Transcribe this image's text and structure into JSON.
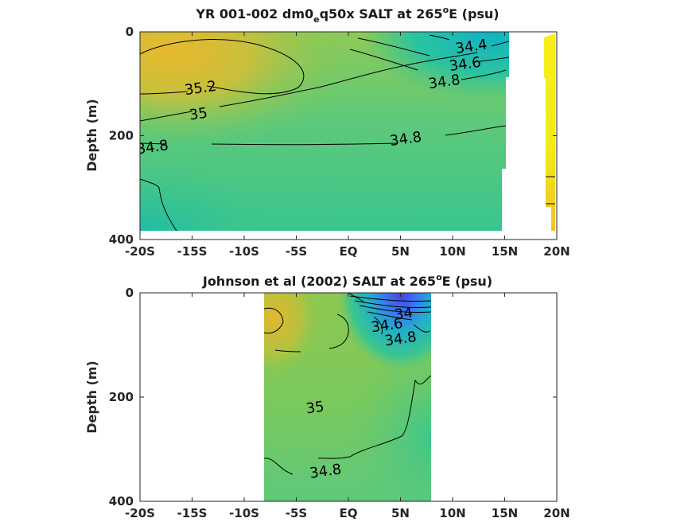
{
  "chart_data": [
    {
      "type": "heatmap",
      "title_main": "YR 001-002 dm0",
      "title_sub": "e",
      "title_rest": "q50x SALT at 265",
      "title_sup": "o",
      "title_end": "E (psu)",
      "ylabel": "Depth (m)",
      "xticks": [
        "-20S",
        "-15S",
        "-10S",
        "-5S",
        "EQ",
        "5N",
        "10N",
        "15N",
        "20N"
      ],
      "xtick_values": [
        -20,
        -15,
        -10,
        -5,
        0,
        5,
        10,
        15,
        20
      ],
      "yticks": [
        "0",
        "200",
        "400"
      ],
      "ytick_values": [
        0,
        200,
        400
      ],
      "xlim": [
        -20,
        20
      ],
      "ylim": [
        0,
        400
      ],
      "contour_labels": [
        "34.4",
        "34.6",
        "34.8",
        "35.2",
        "35",
        "34.8",
        "34.8"
      ],
      "contour_label_positions": [
        {
          "lat": 11.8,
          "depth": 28
        },
        {
          "lat": 11.2,
          "depth": 62
        },
        {
          "lat": 9.2,
          "depth": 96
        },
        {
          "lat": -14.2,
          "depth": 108
        },
        {
          "lat": -14.4,
          "depth": 158
        },
        {
          "lat": -18.8,
          "depth": 222
        },
        {
          "lat": 5.5,
          "depth": 206
        }
      ]
    },
    {
      "type": "heatmap",
      "title_main": "Johnson et al (2002) SALT at 265",
      "title_sup": "o",
      "title_end": "E (psu)",
      "ylabel": "Depth (m)",
      "xticks": [
        "-20S",
        "-15S",
        "-10S",
        "-5S",
        "EQ",
        "5N",
        "10N",
        "15N",
        "20N"
      ],
      "xtick_values": [
        -20,
        -15,
        -10,
        -5,
        0,
        5,
        10,
        15,
        20
      ],
      "yticks": [
        "0",
        "200",
        "400"
      ],
      "ytick_values": [
        0,
        200,
        400
      ],
      "xlim": [
        -20,
        20
      ],
      "ylim": [
        0,
        400
      ],
      "contour_labels": [
        "34",
        "34.6",
        "34.8",
        "35",
        "34.8"
      ],
      "contour_label_positions": [
        {
          "lat": 5.3,
          "depth": 40
        },
        {
          "lat": 3.7,
          "depth": 62
        },
        {
          "lat": 5.0,
          "depth": 88
        },
        {
          "lat": -3.2,
          "depth": 220
        },
        {
          "lat": -2.2,
          "depth": 342
        }
      ]
    }
  ]
}
